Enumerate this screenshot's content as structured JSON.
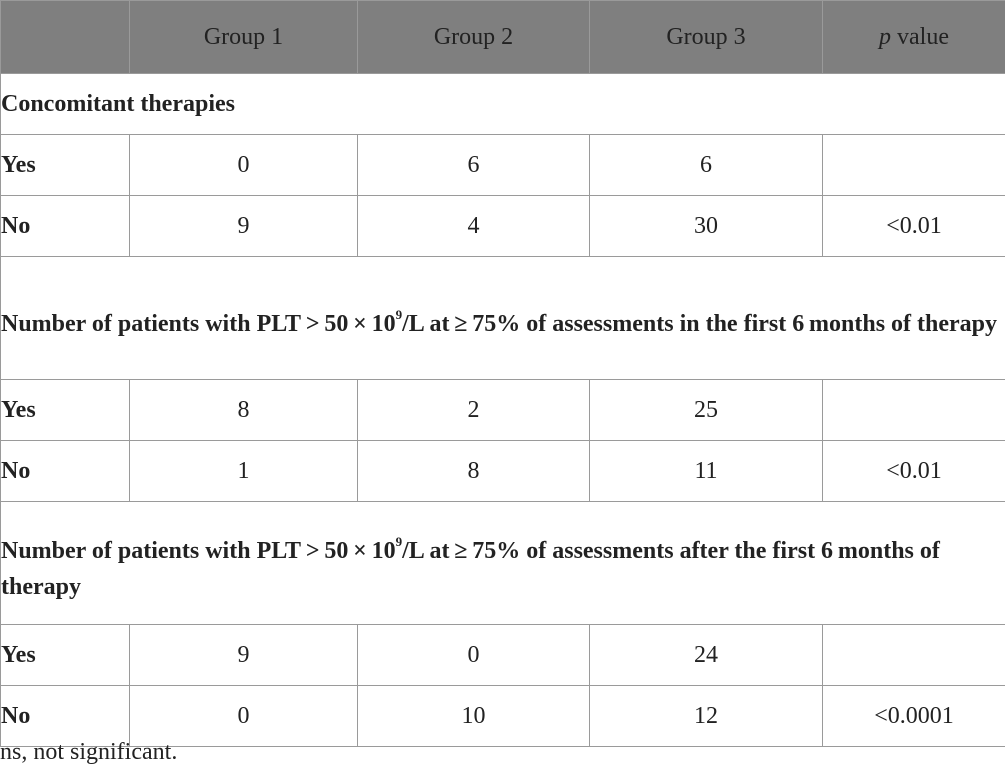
{
  "header": {
    "col1": "Group 1",
    "col2": "Group 2",
    "col3": "Group 3",
    "col4_italic": "p",
    "col4_rest": " value"
  },
  "sections": [
    {
      "title": "Concomitant therapies",
      "rows": [
        {
          "label": "Yes",
          "g1": "0",
          "g2": "6",
          "g3": "6",
          "p": ""
        },
        {
          "label": "No",
          "g1": "9",
          "g2": "4",
          "g3": "30",
          "p": "<0.01"
        }
      ]
    },
    {
      "title_pre": "Number of patients with PLT > 50 × 10",
      "title_sup": "9",
      "title_post": "/L at ≥ 75% of assessments in the first 6 months of therapy",
      "rows": [
        {
          "label": "Yes",
          "g1": "8",
          "g2": "2",
          "g3": "25",
          "p": ""
        },
        {
          "label": "No",
          "g1": "1",
          "g2": "8",
          "g3": "11",
          "p": "<0.01"
        }
      ]
    },
    {
      "title_pre": "Number of patients with PLT > 50 × 10",
      "title_sup": "9",
      "title_post": "/L at ≥ 75% of assessments after the first 6 months of therapy",
      "rows": [
        {
          "label": "Yes",
          "g1": "9",
          "g2": "0",
          "g3": "24",
          "p": ""
        },
        {
          "label": "No",
          "g1": "0",
          "g2": "10",
          "g3": "12",
          "p": "<0.0001"
        }
      ]
    }
  ],
  "footnote": "ns, not significant."
}
